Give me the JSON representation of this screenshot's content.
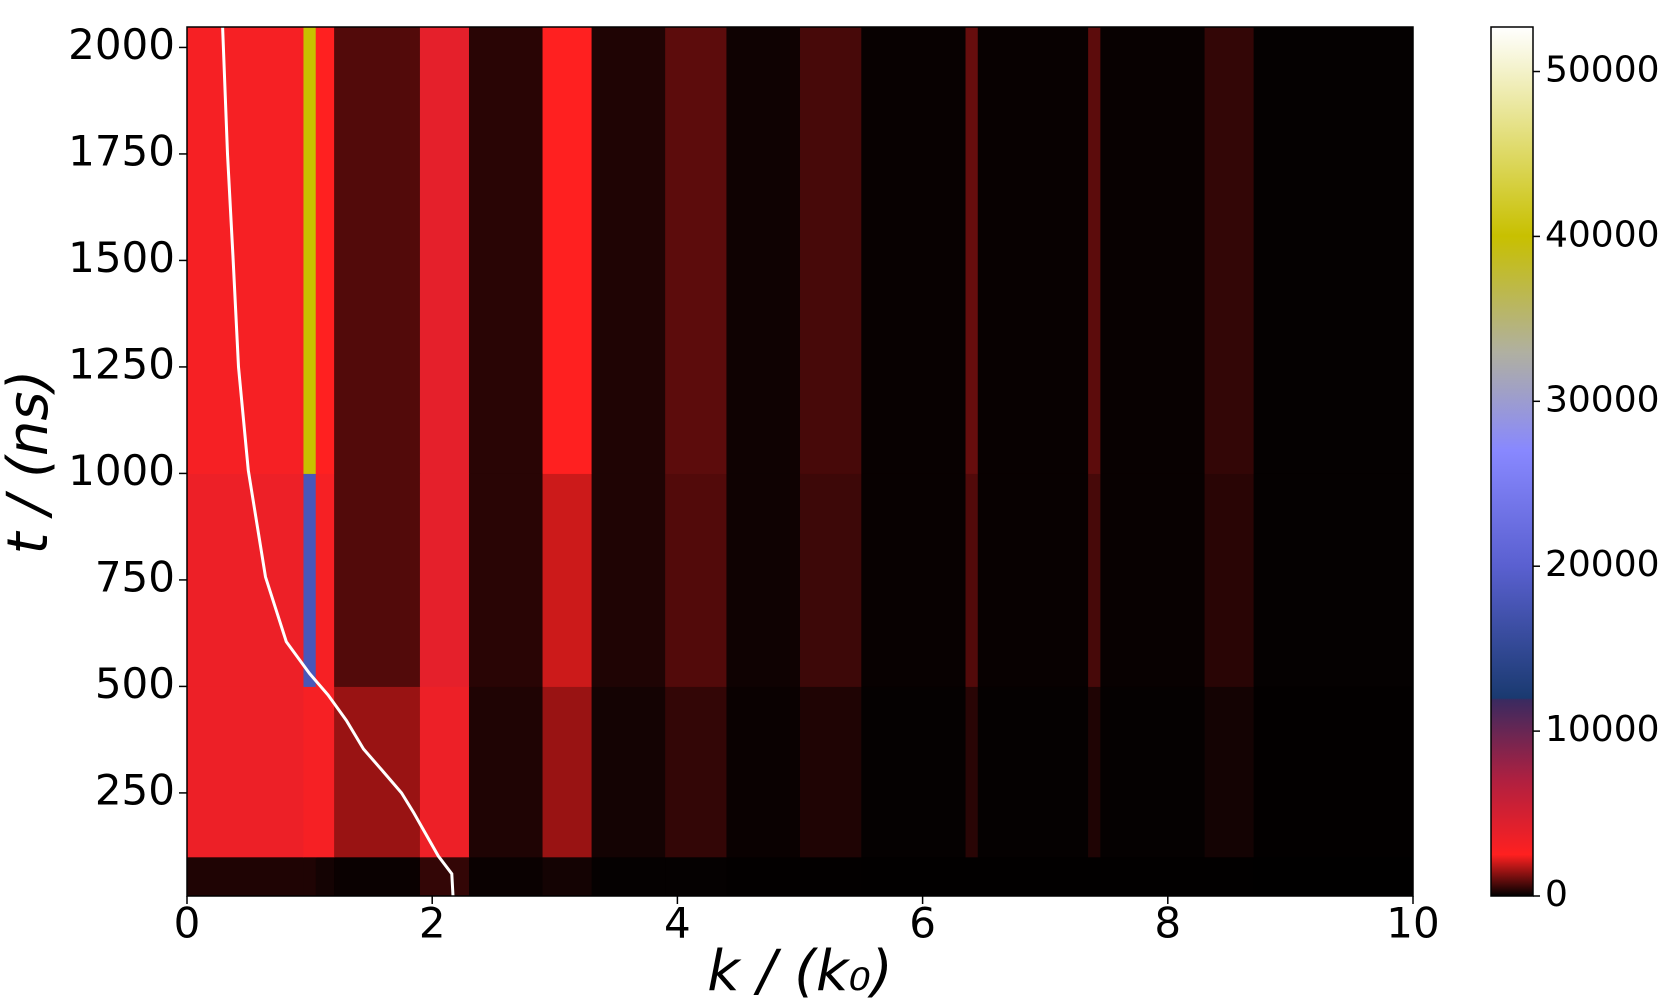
{
  "chart_data": {
    "type": "heatmap",
    "xlabel": "k / (k₀)",
    "ylabel": "t / (ns)",
    "xlim": [
      0,
      10
    ],
    "xticks": [
      0,
      2,
      4,
      6,
      8,
      10
    ],
    "ylim": [
      8,
      2048
    ],
    "yticks": [
      250,
      500,
      750,
      1000,
      1250,
      1500,
      1750,
      2000
    ],
    "x_bins": [
      0,
      0.95,
      1.05,
      1.2,
      1.9,
      2.3,
      2.9,
      3.3,
      3.9,
      4.4,
      5.0,
      5.5,
      6.35,
      6.45,
      7.35,
      7.45,
      8.3,
      8.7,
      10
    ],
    "y_bins": [
      8,
      100,
      500,
      1000,
      2048
    ],
    "z": [
      [
        300,
        300,
        200,
        100,
        500,
        100,
        200,
        50,
        50,
        30,
        30,
        20,
        20,
        20,
        20,
        20,
        20,
        10
      ],
      [
        3500,
        3000,
        3000,
        1500,
        3500,
        300,
        1500,
        200,
        500,
        100,
        300,
        50,
        400,
        50,
        300,
        50,
        200,
        30
      ],
      [
        3500,
        18000,
        3000,
        800,
        4000,
        400,
        2000,
        300,
        800,
        150,
        600,
        80,
        800,
        80,
        700,
        80,
        400,
        50
      ],
      [
        3000,
        40000,
        2500,
        800,
        4000,
        400,
        2500,
        300,
        900,
        150,
        700,
        80,
        1000,
        80,
        900,
        80,
        500,
        50
      ]
    ],
    "clim": [
      0,
      52700
    ],
    "cticks": [
      0,
      10000,
      20000,
      30000,
      40000,
      50000
    ],
    "colormap": [
      {
        "value": 0,
        "color": "#000000"
      },
      {
        "value": 2500,
        "color": "#ff2020"
      },
      {
        "value": 7000,
        "color": "#b02040"
      },
      {
        "value": 11900,
        "color": "#3a2a60"
      },
      {
        "value": 12000,
        "color": "#1a3a70"
      },
      {
        "value": 20000,
        "color": "#5a60d0"
      },
      {
        "value": 27000,
        "color": "#8888ff"
      },
      {
        "value": 33000,
        "color": "#b0b0a0"
      },
      {
        "value": 40000,
        "color": "#c8c000"
      },
      {
        "value": 52700,
        "color": "#ffffff"
      }
    ],
    "curve": {
      "color": "#ffffff",
      "x": [
        2.17,
        2.16,
        2.05,
        1.85,
        1.75,
        1.6,
        1.44,
        1.3,
        1.15,
        1.0,
        0.81,
        0.64,
        0.5,
        0.42,
        0.375,
        0.33,
        0.29
      ],
      "y": [
        8,
        60,
        102,
        203,
        250,
        300,
        353,
        420,
        480,
        530,
        605,
        757,
        1007,
        1250,
        1508,
        1750,
        2048
      ]
    }
  }
}
